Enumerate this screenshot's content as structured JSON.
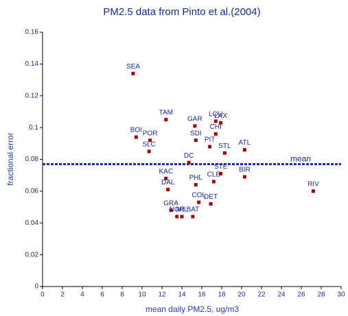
{
  "chart_data": {
    "type": "scatter",
    "title": "PM2.5 data from Pinto et al.(2004)",
    "x_label": "mean daily PM2.5, ug/m3",
    "y_label": "fractional error",
    "xlim": [
      0,
      30
    ],
    "ylim": [
      0,
      0.16
    ],
    "xticks": [
      0,
      2,
      4,
      6,
      8,
      10,
      12,
      14,
      16,
      18,
      20,
      22,
      24,
      26,
      28,
      30
    ],
    "yticks": [
      0,
      0.02,
      0.04,
      0.06,
      0.08,
      0.1,
      0.12,
      0.14,
      0.16
    ],
    "series": [
      {
        "color": "#a00000",
        "labels": [
          "SEA",
          "TAM",
          "BOI",
          "POR",
          "SLC",
          "GAR",
          "LOU",
          "LAX",
          "CHI",
          "SDI",
          "PIT",
          "STL",
          "ATL",
          "DC",
          "STE",
          "CLE",
          "BIR",
          "KAC",
          "DAL",
          "PHL",
          "RIV",
          "COL",
          "DET",
          "GRA",
          "NOR",
          "MIL",
          "BAT"
        ],
        "x": [
          9.1,
          12.4,
          9.4,
          10.8,
          10.7,
          15.3,
          17.4,
          17.9,
          17.4,
          15.4,
          16.8,
          18.3,
          20.3,
          14.7,
          17.9,
          17.2,
          20.3,
          12.4,
          12.6,
          15.4,
          27.2,
          15.7,
          16.9,
          12.9,
          13.5,
          14.0,
          15.1
        ],
        "values": [
          0.134,
          0.105,
          0.094,
          0.092,
          0.085,
          0.101,
          0.104,
          0.103,
          0.096,
          0.092,
          0.088,
          0.084,
          0.086,
          0.078,
          0.071,
          0.066,
          0.069,
          0.068,
          0.061,
          0.064,
          0.06,
          0.053,
          0.052,
          0.048,
          0.044,
          0.044,
          0.044
        ]
      }
    ],
    "mean_line": {
      "label": "mean",
      "value": 0.077,
      "color": "#1a2aaa"
    }
  }
}
